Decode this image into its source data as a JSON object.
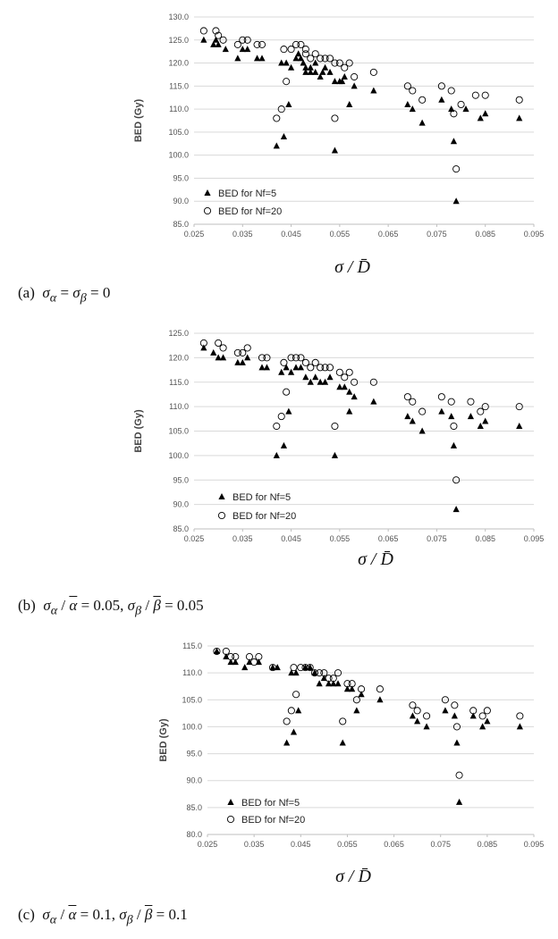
{
  "colors": {
    "grid": "#d9d9d9",
    "axis": "#bfbfbf",
    "marker": "#000000"
  },
  "chart_data": [
    {
      "type": "scatter",
      "caption": "(a)  σα = σβ = 0",
      "ylabel": "BED (Gy)",
      "xlabel": "σ / D̄",
      "xlim": [
        0.025,
        0.095
      ],
      "ylim": [
        85.0,
        130.0
      ],
      "x_ticks": [
        "0.025",
        "0.035",
        "0.045",
        "0.055",
        "0.065",
        "0.075",
        "0.085",
        "0.095"
      ],
      "y_ticks": [
        "85.0",
        "90.0",
        "95.0",
        "100.0",
        "105.0",
        "110.0",
        "115.0",
        "120.0",
        "125.0",
        "130.0"
      ],
      "grid": "horizontal",
      "legend_position": "bottom-left",
      "series": [
        {
          "name": "BED for Nf=5",
          "marker": "filled-triangle",
          "points": [
            [
              0.027,
              125
            ],
            [
              0.029,
              124
            ],
            [
              0.0295,
              125
            ],
            [
              0.03,
              124
            ],
            [
              0.0315,
              123
            ],
            [
              0.034,
              121
            ],
            [
              0.035,
              123
            ],
            [
              0.036,
              123
            ],
            [
              0.038,
              121
            ],
            [
              0.039,
              121
            ],
            [
              0.042,
              102
            ],
            [
              0.043,
              120
            ],
            [
              0.0435,
              104
            ],
            [
              0.044,
              120
            ],
            [
              0.0445,
              111
            ],
            [
              0.045,
              119
            ],
            [
              0.046,
              121
            ],
            [
              0.0465,
              122
            ],
            [
              0.047,
              121
            ],
            [
              0.0475,
              120
            ],
            [
              0.048,
              118
            ],
            [
              0.048,
              119
            ],
            [
              0.049,
              119
            ],
            [
              0.049,
              118
            ],
            [
              0.05,
              118
            ],
            [
              0.05,
              120
            ],
            [
              0.051,
              117
            ],
            [
              0.0515,
              118
            ],
            [
              0.052,
              119
            ],
            [
              0.053,
              118
            ],
            [
              0.054,
              101
            ],
            [
              0.054,
              116
            ],
            [
              0.055,
              116
            ],
            [
              0.0555,
              116
            ],
            [
              0.056,
              117
            ],
            [
              0.057,
              111
            ],
            [
              0.058,
              115
            ],
            [
              0.062,
              114
            ],
            [
              0.069,
              111
            ],
            [
              0.07,
              110
            ],
            [
              0.072,
              107
            ],
            [
              0.076,
              112
            ],
            [
              0.078,
              110
            ],
            [
              0.0785,
              103
            ],
            [
              0.079,
              90
            ],
            [
              0.081,
              110
            ],
            [
              0.084,
              108
            ],
            [
              0.085,
              109
            ],
            [
              0.092,
              108
            ]
          ]
        },
        {
          "name": "BED for Nf=20",
          "marker": "open-circle",
          "points": [
            [
              0.027,
              127
            ],
            [
              0.0295,
              127
            ],
            [
              0.03,
              126
            ],
            [
              0.031,
              125
            ],
            [
              0.034,
              124
            ],
            [
              0.035,
              125
            ],
            [
              0.036,
              125
            ],
            [
              0.038,
              124
            ],
            [
              0.039,
              124
            ],
            [
              0.042,
              108
            ],
            [
              0.043,
              110
            ],
            [
              0.0435,
              123
            ],
            [
              0.044,
              116
            ],
            [
              0.045,
              123
            ],
            [
              0.046,
              124
            ],
            [
              0.047,
              124
            ],
            [
              0.048,
              122
            ],
            [
              0.048,
              123
            ],
            [
              0.049,
              121
            ],
            [
              0.05,
              122
            ],
            [
              0.051,
              121
            ],
            [
              0.052,
              121
            ],
            [
              0.053,
              121
            ],
            [
              0.054,
              108
            ],
            [
              0.054,
              120
            ],
            [
              0.055,
              120
            ],
            [
              0.056,
              119
            ],
            [
              0.057,
              120
            ],
            [
              0.058,
              117
            ],
            [
              0.062,
              118
            ],
            [
              0.069,
              115
            ],
            [
              0.07,
              114
            ],
            [
              0.072,
              112
            ],
            [
              0.076,
              115
            ],
            [
              0.078,
              114
            ],
            [
              0.0785,
              109
            ],
            [
              0.079,
              97
            ],
            [
              0.08,
              111
            ],
            [
              0.083,
              113
            ],
            [
              0.085,
              113
            ],
            [
              0.092,
              112
            ]
          ]
        }
      ]
    },
    {
      "type": "scatter",
      "caption": "(b)  σα / ᾱ = 0.05,  σβ / β̄ = 0.05",
      "ylabel": "BED (Gy)",
      "xlabel": "σ / D̄",
      "xlim": [
        0.025,
        0.095
      ],
      "ylim": [
        85.0,
        125.0
      ],
      "x_ticks": [
        "0.025",
        "0.035",
        "0.045",
        "0.055",
        "0.065",
        "0.075",
        "0.085",
        "0.095"
      ],
      "y_ticks": [
        "85.0",
        "90.0",
        "95.0",
        "100.0",
        "105.0",
        "110.0",
        "115.0",
        "120.0",
        "125.0"
      ],
      "grid": "horizontal",
      "legend_position": "bottom-left",
      "series": [
        {
          "name": "BED for Nf=5",
          "marker": "filled-triangle",
          "points": [
            [
              0.027,
              122
            ],
            [
              0.029,
              121
            ],
            [
              0.03,
              120
            ],
            [
              0.031,
              120
            ],
            [
              0.034,
              119
            ],
            [
              0.035,
              119
            ],
            [
              0.036,
              120
            ],
            [
              0.039,
              118
            ],
            [
              0.04,
              118
            ],
            [
              0.042,
              100
            ],
            [
              0.043,
              117
            ],
            [
              0.0435,
              102
            ],
            [
              0.044,
              118
            ],
            [
              0.0445,
              109
            ],
            [
              0.045,
              117
            ],
            [
              0.046,
              118
            ],
            [
              0.047,
              118
            ],
            [
              0.048,
              116
            ],
            [
              0.049,
              115
            ],
            [
              0.05,
              116
            ],
            [
              0.051,
              115
            ],
            [
              0.052,
              115
            ],
            [
              0.053,
              116
            ],
            [
              0.054,
              100
            ],
            [
              0.055,
              114
            ],
            [
              0.056,
              114
            ],
            [
              0.057,
              113
            ],
            [
              0.057,
              109
            ],
            [
              0.058,
              112
            ],
            [
              0.062,
              111
            ],
            [
              0.069,
              108
            ],
            [
              0.07,
              107
            ],
            [
              0.072,
              105
            ],
            [
              0.076,
              109
            ],
            [
              0.078,
              108
            ],
            [
              0.0785,
              102
            ],
            [
              0.079,
              89
            ],
            [
              0.082,
              108
            ],
            [
              0.084,
              106
            ],
            [
              0.085,
              107
            ],
            [
              0.092,
              106
            ]
          ]
        },
        {
          "name": "BED for Nf=20",
          "marker": "open-circle",
          "points": [
            [
              0.027,
              123
            ],
            [
              0.03,
              123
            ],
            [
              0.031,
              122
            ],
            [
              0.034,
              121
            ],
            [
              0.035,
              121
            ],
            [
              0.036,
              122
            ],
            [
              0.039,
              120
            ],
            [
              0.04,
              120
            ],
            [
              0.042,
              106
            ],
            [
              0.043,
              108
            ],
            [
              0.0435,
              119
            ],
            [
              0.044,
              113
            ],
            [
              0.045,
              120
            ],
            [
              0.046,
              120
            ],
            [
              0.047,
              120
            ],
            [
              0.048,
              119
            ],
            [
              0.049,
              118
            ],
            [
              0.05,
              119
            ],
            [
              0.051,
              118
            ],
            [
              0.052,
              118
            ],
            [
              0.053,
              118
            ],
            [
              0.054,
              106
            ],
            [
              0.055,
              117
            ],
            [
              0.056,
              116
            ],
            [
              0.057,
              117
            ],
            [
              0.058,
              115
            ],
            [
              0.062,
              115
            ],
            [
              0.069,
              112
            ],
            [
              0.07,
              111
            ],
            [
              0.072,
              109
            ],
            [
              0.076,
              112
            ],
            [
              0.078,
              111
            ],
            [
              0.0785,
              106
            ],
            [
              0.079,
              95
            ],
            [
              0.082,
              111
            ],
            [
              0.084,
              109
            ],
            [
              0.085,
              110
            ],
            [
              0.092,
              110
            ]
          ]
        }
      ]
    },
    {
      "type": "scatter",
      "caption": "(c)  σα / ᾱ = 0.1,  σβ / β̄ = 0.1",
      "ylabel": "BED (Gy)",
      "xlabel": "σ / D̄",
      "xlim": [
        0.025,
        0.095
      ],
      "ylim": [
        80.0,
        115.0
      ],
      "x_ticks": [
        "0.025",
        "0.035",
        "0.045",
        "0.055",
        "0.065",
        "0.075",
        "0.085",
        "0.095"
      ],
      "y_ticks": [
        "80.0",
        "85.0",
        "90.0",
        "95.0",
        "100.0",
        "105.0",
        "110.0",
        "115.0"
      ],
      "grid": "horizontal",
      "legend_position": "bottom-left",
      "series": [
        {
          "name": "BED for Nf=5",
          "marker": "filled-triangle",
          "points": [
            [
              0.027,
              114
            ],
            [
              0.029,
              113
            ],
            [
              0.03,
              112
            ],
            [
              0.031,
              112
            ],
            [
              0.033,
              111
            ],
            [
              0.034,
              112
            ],
            [
              0.036,
              112
            ],
            [
              0.039,
              111
            ],
            [
              0.04,
              111
            ],
            [
              0.042,
              97
            ],
            [
              0.043,
              110
            ],
            [
              0.0435,
              99
            ],
            [
              0.044,
              110
            ],
            [
              0.0445,
              103
            ],
            [
              0.046,
              111
            ],
            [
              0.047,
              111
            ],
            [
              0.048,
              110
            ],
            [
              0.049,
              108
            ],
            [
              0.05,
              109
            ],
            [
              0.051,
              108
            ],
            [
              0.052,
              108
            ],
            [
              0.053,
              108
            ],
            [
              0.054,
              97
            ],
            [
              0.055,
              107
            ],
            [
              0.056,
              107
            ],
            [
              0.057,
              103
            ],
            [
              0.058,
              106
            ],
            [
              0.062,
              105
            ],
            [
              0.069,
              102
            ],
            [
              0.07,
              101
            ],
            [
              0.072,
              100
            ],
            [
              0.076,
              103
            ],
            [
              0.078,
              102
            ],
            [
              0.0785,
              97
            ],
            [
              0.079,
              86
            ],
            [
              0.082,
              102
            ],
            [
              0.084,
              100
            ],
            [
              0.085,
              101
            ],
            [
              0.092,
              100
            ]
          ]
        },
        {
          "name": "BED for Nf=20",
          "marker": "open-circle",
          "points": [
            [
              0.027,
              114
            ],
            [
              0.029,
              114
            ],
            [
              0.03,
              113
            ],
            [
              0.031,
              113
            ],
            [
              0.034,
              113
            ],
            [
              0.035,
              112
            ],
            [
              0.036,
              113
            ],
            [
              0.039,
              111
            ],
            [
              0.042,
              101
            ],
            [
              0.043,
              103
            ],
            [
              0.0435,
              111
            ],
            [
              0.044,
              106
            ],
            [
              0.045,
              111
            ],
            [
              0.046,
              111
            ],
            [
              0.047,
              111
            ],
            [
              0.048,
              110
            ],
            [
              0.049,
              110
            ],
            [
              0.05,
              110
            ],
            [
              0.051,
              109
            ],
            [
              0.052,
              109
            ],
            [
              0.053,
              110
            ],
            [
              0.054,
              101
            ],
            [
              0.055,
              108
            ],
            [
              0.056,
              108
            ],
            [
              0.057,
              105
            ],
            [
              0.058,
              107
            ],
            [
              0.062,
              107
            ],
            [
              0.069,
              104
            ],
            [
              0.07,
              103
            ],
            [
              0.072,
              102
            ],
            [
              0.076,
              105
            ],
            [
              0.078,
              104
            ],
            [
              0.0785,
              100
            ],
            [
              0.079,
              91
            ],
            [
              0.082,
              103
            ],
            [
              0.084,
              102
            ],
            [
              0.085,
              103
            ],
            [
              0.092,
              102
            ]
          ]
        }
      ]
    }
  ]
}
